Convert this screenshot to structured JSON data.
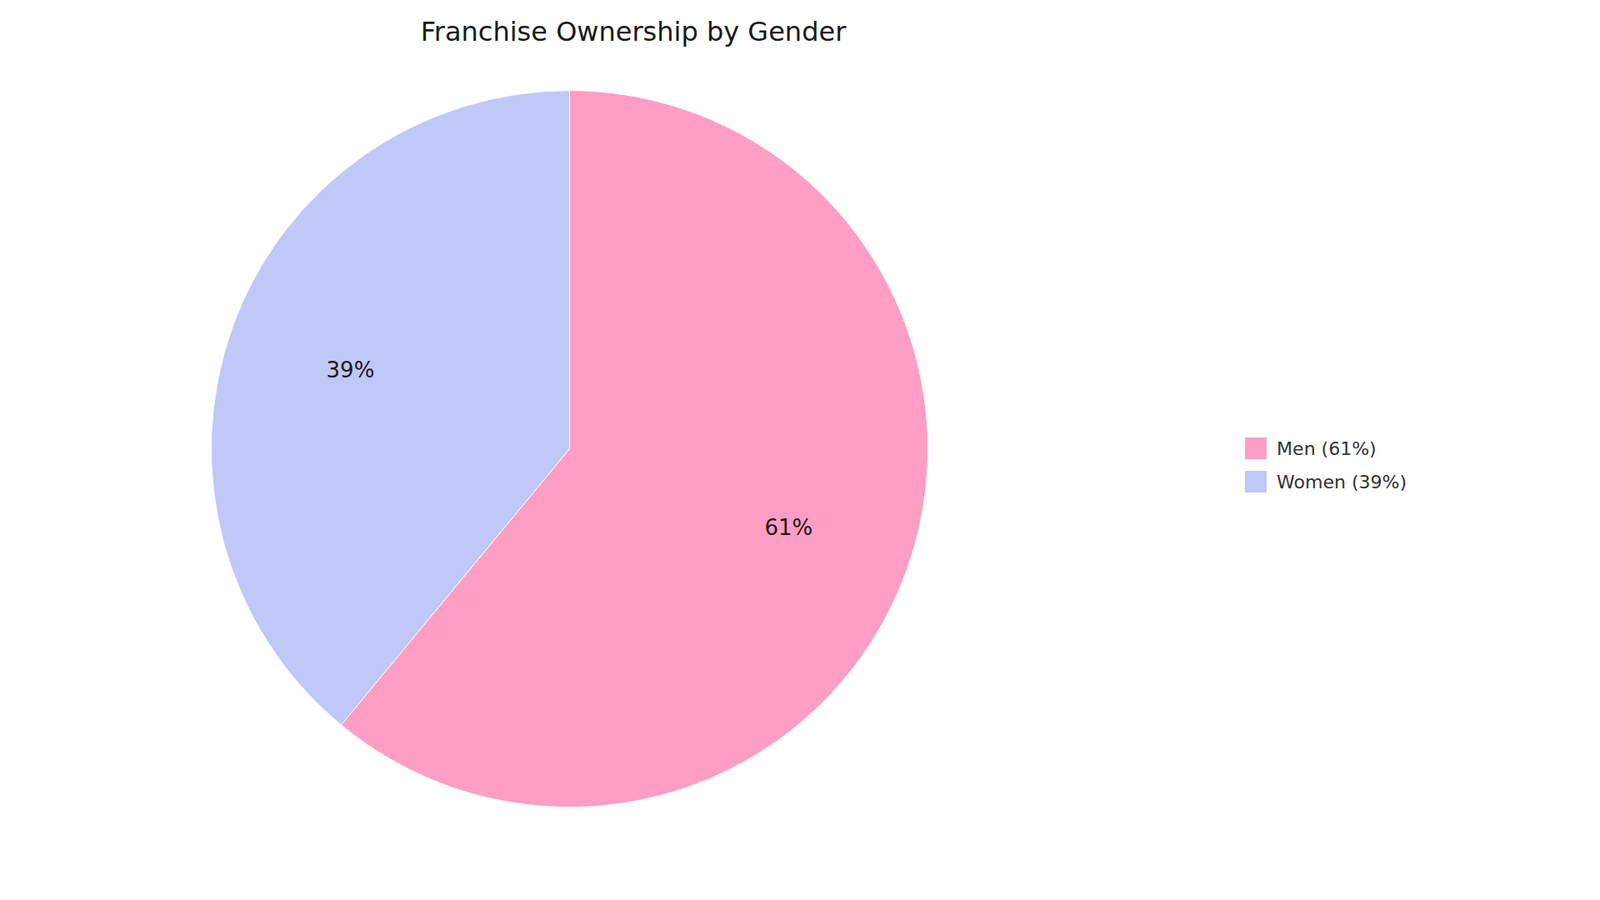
{
  "chart_data": {
    "type": "pie",
    "title": "Franchise Ownership by Gender",
    "categories": [
      "Men (61%)",
      "Women (39%)"
    ],
    "values": [
      61,
      39
    ],
    "value_labels": [
      "61%",
      "39%"
    ],
    "colors": [
      "#FF9EC4",
      "#C0C8F8"
    ],
    "data_labels": true,
    "legend": "right"
  }
}
